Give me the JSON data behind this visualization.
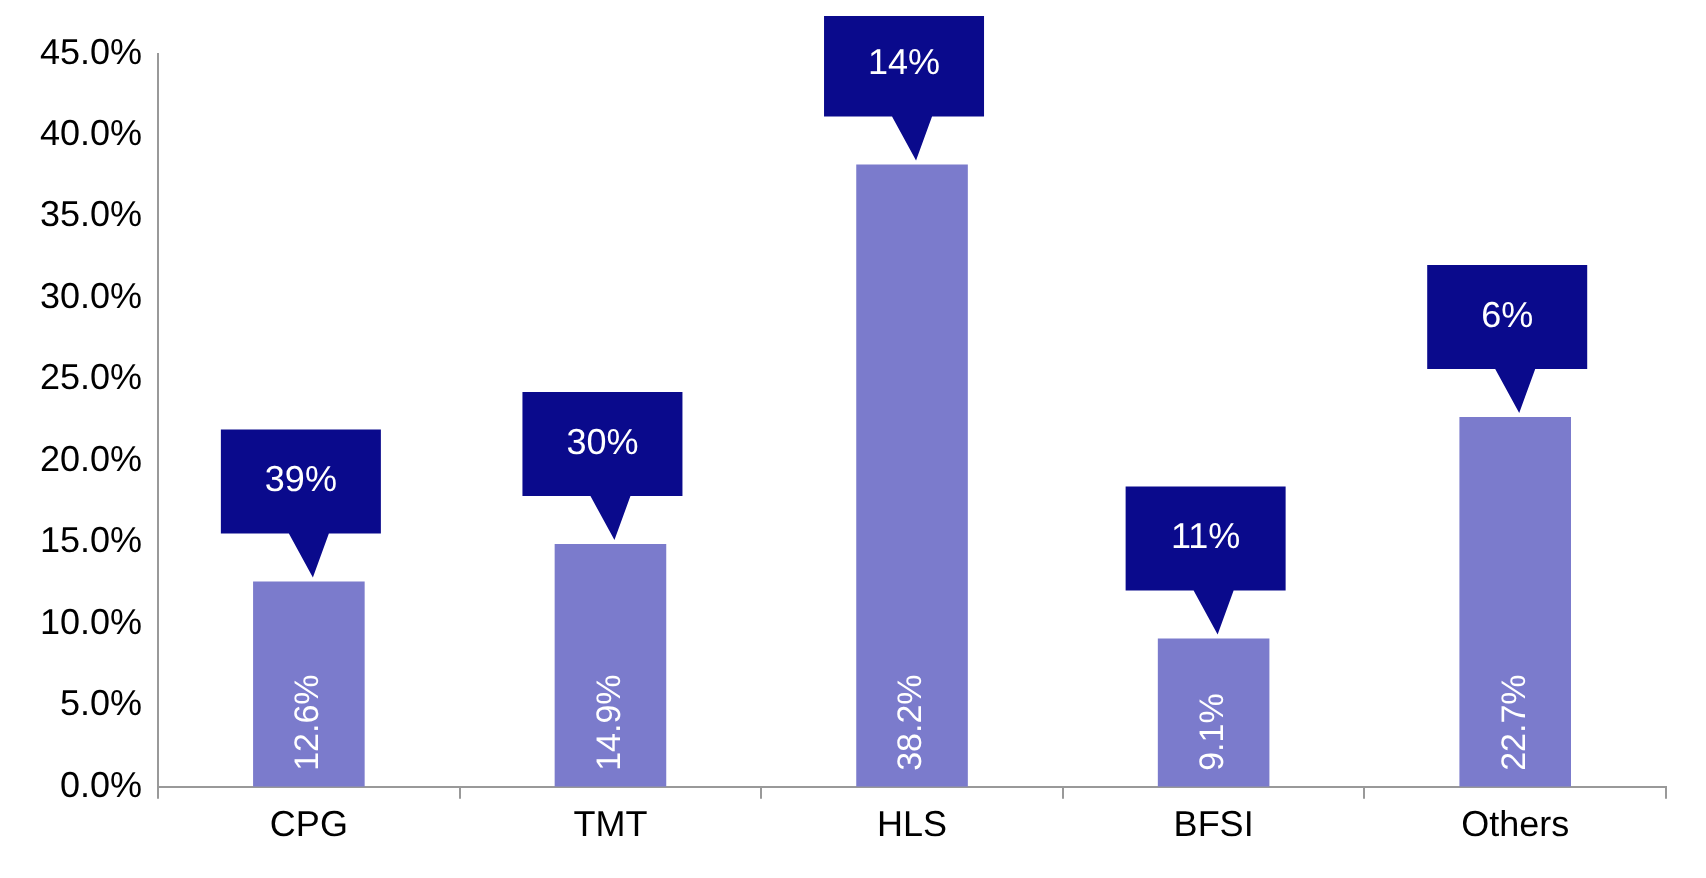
{
  "chart_data": {
    "type": "bar",
    "categories": [
      "CPG",
      "TMT",
      "HLS",
      "BFSI",
      "Others"
    ],
    "values": [
      12.6,
      14.9,
      38.2,
      9.1,
      22.7
    ],
    "value_labels": [
      "12.6%",
      "14.9%",
      "38.2%",
      "9.1%",
      "22.7%"
    ],
    "color": "#7b7bcc",
    "ylim": [
      0,
      45
    ],
    "yticks": [
      {
        "value": 0,
        "label": "0.0%"
      },
      {
        "value": 5,
        "label": "5.0%"
      },
      {
        "value": 10,
        "label": "10.0%"
      },
      {
        "value": 15,
        "label": "15.0%"
      },
      {
        "value": 20,
        "label": "20.0%"
      },
      {
        "value": 25,
        "label": "25.0%"
      },
      {
        "value": 30,
        "label": "30.0%"
      },
      {
        "value": 35,
        "label": "35.0%"
      },
      {
        "value": 40,
        "label": "40.0%"
      },
      {
        "value": 45,
        "label": "45.0%"
      }
    ],
    "annotations": [
      {
        "text": "39%",
        "x": "CPG",
        "y": 12.6
      },
      {
        "text": "30%",
        "x": "TMT",
        "y": 14.9
      },
      {
        "text": "14%",
        "x": "HLS",
        "y": 38.2
      },
      {
        "text": "11%",
        "x": "BFSI",
        "y": 9.1
      },
      {
        "text": "6%",
        "x": "Others",
        "y": 22.7
      }
    ],
    "grid": false,
    "legend": false
  }
}
